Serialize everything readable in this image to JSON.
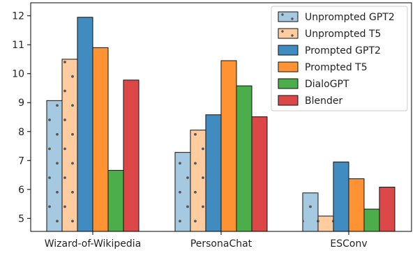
{
  "chart_data": {
    "type": "bar",
    "categories": [
      "Wizard-of-Wikipedia",
      "PersonaChat",
      "ESConv"
    ],
    "series": [
      {
        "name": "Unprompted GPT2",
        "values": [
          9.07,
          7.28,
          5.88
        ],
        "color": "#1f77b4",
        "pattern": "dots"
      },
      {
        "name": "Unprompted T5",
        "values": [
          10.5,
          8.05,
          5.08
        ],
        "color": "#ff7f0e",
        "pattern": "dots"
      },
      {
        "name": "Prompted GPT2",
        "values": [
          11.95,
          8.58,
          6.95
        ],
        "color": "#1f77b4",
        "pattern": "solid"
      },
      {
        "name": "Prompted T5",
        "values": [
          10.9,
          10.45,
          6.37
        ],
        "color": "#ff7f0e",
        "pattern": "solid"
      },
      {
        "name": "DialoGPT",
        "values": [
          6.66,
          9.58,
          5.32
        ],
        "color": "#2ca02c",
        "pattern": "solid"
      },
      {
        "name": "Blender",
        "values": [
          9.78,
          8.51,
          6.08
        ],
        "color": "#d62728",
        "pattern": "solid"
      }
    ],
    "yticks": [
      5,
      6,
      7,
      8,
      9,
      10,
      11,
      12
    ],
    "ylim": [
      4.55,
      12.45
    ],
    "legend_position": "top-right",
    "grid": false
  }
}
